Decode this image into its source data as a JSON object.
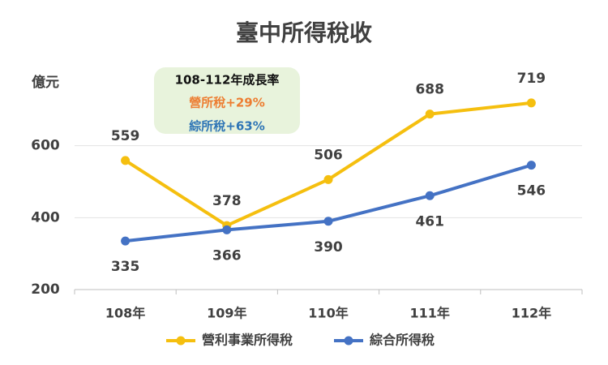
{
  "chart_data": {
    "type": "line",
    "title": "臺中所得稅收",
    "y_label": "億元",
    "categories": [
      "108年",
      "109年",
      "110年",
      "111年",
      "112年"
    ],
    "series": [
      {
        "name": "營利事業所得稅",
        "color": "#f5bf0f",
        "values": [
          559,
          378,
          506,
          688,
          719
        ],
        "label_position": "above"
      },
      {
        "name": "綜合所得稅",
        "color": "#4472c4",
        "values": [
          335,
          366,
          390,
          461,
          546
        ],
        "label_position": "below"
      }
    ],
    "ylim": [
      200,
      800
    ],
    "yticks": [
      200,
      400,
      600
    ],
    "grid": true,
    "legend": "bottom",
    "annotation": {
      "title": "108-112年成長率",
      "lines": [
        {
          "text": "營所稅+29%",
          "color": "#ed7d31"
        },
        {
          "text": "綜所稅+63%",
          "color": "#2e75b6"
        }
      ]
    }
  }
}
